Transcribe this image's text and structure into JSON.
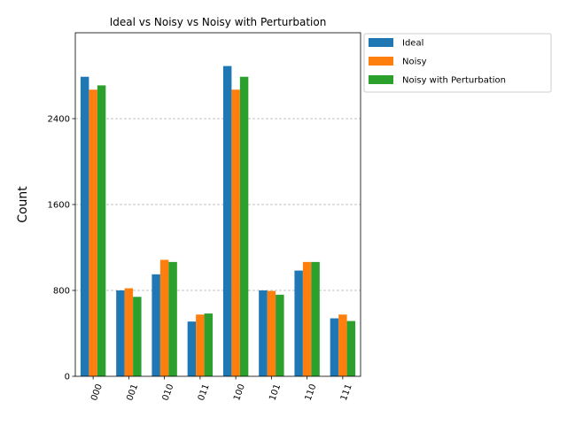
{
  "chart_data": {
    "type": "bar",
    "title": "Ideal vs Noisy vs Noisy with Perturbation",
    "xlabel": "",
    "ylabel": "Count",
    "ylim": [
      0,
      3200
    ],
    "yticks": [
      0,
      800,
      1600,
      2400
    ],
    "grid": "y-dashed",
    "legend_placement": "outside-top-right",
    "categories": [
      "000",
      "001",
      "010",
      "011",
      "100",
      "101",
      "110",
      "111"
    ],
    "series": [
      {
        "name": "Ideal",
        "color": "#1f77b4",
        "values": [
          2790,
          800,
          950,
          510,
          2890,
          800,
          985,
          540
        ]
      },
      {
        "name": "Noisy",
        "color": "#ff7f0e",
        "values": [
          2670,
          820,
          1085,
          575,
          2670,
          795,
          1065,
          575
        ]
      },
      {
        "name": "Noisy with Perturbation",
        "color": "#2ca02c",
        "values": [
          2710,
          740,
          1065,
          585,
          2790,
          760,
          1065,
          515
        ]
      }
    ]
  }
}
